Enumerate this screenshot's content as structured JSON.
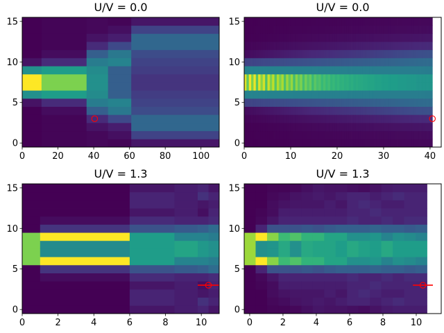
{
  "chart_data": [
    {
      "type": "heatmap",
      "title": "U/V = 0.0",
      "xlim": [
        0,
        110.2
      ],
      "ylim": [
        -0.5,
        15.5
      ],
      "xticks": [
        0,
        20,
        40,
        60,
        80,
        100
      ],
      "yticks": [
        0,
        5,
        10,
        15
      ],
      "rows": 16,
      "columns": [
        {
          "x": [
            0,
            10.8
          ],
          "half_profile": [
            1.0,
            0.5,
            0.05,
            0.0,
            0.0,
            0.0,
            0.0,
            0.0
          ]
        },
        {
          "x": [
            10.8,
            36
          ],
          "half_profile": [
            0.8,
            0.55,
            0.12,
            0.03,
            0.01,
            0.01,
            0.01,
            0.01
          ]
        },
        {
          "x": [
            36,
            48
          ],
          "half_profile": [
            0.5,
            0.48,
            0.42,
            0.3,
            0.12,
            0.05,
            0.02,
            0.02
          ]
        },
        {
          "x": [
            48,
            61
          ],
          "half_profile": [
            0.3,
            0.3,
            0.45,
            0.4,
            0.22,
            0.08,
            0.04,
            0.01
          ]
        },
        {
          "x": [
            61,
            110.2
          ],
          "half_profile": [
            0.15,
            0.18,
            0.2,
            0.23,
            0.33,
            0.33,
            0.2,
            0.06
          ]
        }
      ],
      "marker": {
        "x": 40.5,
        "y": 3,
        "xerr": null
      }
    },
    {
      "type": "heatmap",
      "title": "U/V = 0.0",
      "xlim": [
        0,
        42.4
      ],
      "ylim": [
        -0.5,
        15.5
      ],
      "xticks": [
        0,
        10,
        20,
        30,
        40
      ],
      "yticks": [
        0,
        5,
        10,
        15
      ],
      "rows": 16,
      "column_width": 0.5,
      "center_row": [
        0.95,
        0.75,
        0.98,
        0.8,
        0.97,
        0.74,
        0.95,
        0.82,
        0.93,
        0.72,
        0.92,
        0.8,
        0.9,
        0.73,
        0.88,
        0.79,
        0.87,
        0.72,
        0.85,
        0.76,
        0.84,
        0.7,
        0.82,
        0.74,
        0.8,
        0.7,
        0.78,
        0.72,
        0.76,
        0.68,
        0.74,
        0.7,
        0.72,
        0.67,
        0.7,
        0.67,
        0.69,
        0.65,
        0.67,
        0.64,
        0.66,
        0.63,
        0.64,
        0.62,
        0.63,
        0.61,
        0.62,
        0.6,
        0.61,
        0.6,
        0.6,
        0.59,
        0.59,
        0.58,
        0.58,
        0.58,
        0.57,
        0.57,
        0.57,
        0.56,
        0.56,
        0.56,
        0.55,
        0.55,
        0.55,
        0.55,
        0.54,
        0.54,
        0.54,
        0.54,
        0.53,
        0.53,
        0.53,
        0.53,
        0.52,
        0.52,
        0.52,
        0.52,
        0.52,
        0.52,
        0.52
      ],
      "outer_rows_start": [
        0.45,
        0.2,
        0.03,
        0.01,
        0.0,
        0.0,
        0.0
      ],
      "outer_rows_end": [
        0.42,
        0.35,
        0.25,
        0.12,
        0.06,
        0.03,
        0.02
      ],
      "marker": {
        "x": 40.5,
        "y": 3,
        "xerr": null
      }
    },
    {
      "type": "heatmap",
      "title": "U/V = 1.3",
      "xlim": [
        0,
        11
      ],
      "ylim": [
        -0.5,
        15.5
      ],
      "xticks": [
        0,
        2,
        4,
        6,
        8,
        10
      ],
      "yticks": [
        0,
        5,
        10,
        15
      ],
      "rows": 16,
      "columns": [
        {
          "x": [
            0,
            1
          ],
          "half_profile": [
            0.8,
            0.8,
            0.0,
            0.0,
            0.0,
            0.0,
            0.0,
            0.0
          ]
        },
        {
          "x": [
            1,
            6
          ],
          "half_profile": [
            0.48,
            1.0,
            0.15,
            0.03,
            0.0,
            0.0,
            0.0,
            0.0
          ]
        },
        {
          "x": [
            6,
            8.5
          ],
          "half_profile": [
            0.55,
            0.55,
            0.25,
            0.12,
            0.06,
            0.1,
            0.1,
            0.06
          ]
        },
        {
          "x": [
            8.5,
            9.8
          ],
          "half_profile": [
            0.58,
            0.45,
            0.28,
            0.1,
            0.08,
            0.08,
            0.08,
            0.08
          ]
        },
        {
          "x": [
            9.8,
            10.4
          ],
          "half_profile": [
            0.53,
            0.45,
            0.3,
            0.1,
            0.04,
            0.06,
            0.14,
            0.1
          ]
        },
        {
          "x": [
            10.4,
            11
          ],
          "half_profile": [
            0.5,
            0.42,
            0.35,
            0.12,
            0.1,
            0.08,
            0.1,
            0.06
          ]
        }
      ],
      "marker": {
        "x": 10.4,
        "y": 3,
        "xerr": [
          9.8,
          11.0
        ]
      }
    },
    {
      "type": "heatmap",
      "title": "U/V = 1.3",
      "xlim": [
        -0.33,
        11.5
      ],
      "ylim": [
        -0.5,
        15.5
      ],
      "xticks": [
        0,
        2,
        4,
        6,
        8,
        10
      ],
      "yticks": [
        0,
        5,
        10,
        15
      ],
      "rows": 16,
      "x_start": -0.33,
      "column_width": 0.686,
      "half_profiles": [
        [
          0.85,
          0.85,
          0.0,
          0.0,
          0.0,
          0.0,
          0.0,
          0.0
        ],
        [
          0.5,
          1.0,
          0.1,
          0.02,
          0.01,
          0.0,
          0.0,
          0.0
        ],
        [
          0.52,
          0.82,
          0.25,
          0.06,
          0.03,
          0.03,
          0.02,
          0.01
        ],
        [
          0.6,
          0.68,
          0.25,
          0.1,
          0.08,
          0.05,
          0.03,
          0.01
        ],
        [
          0.5,
          0.72,
          0.25,
          0.1,
          0.08,
          0.06,
          0.05,
          0.02
        ],
        [
          0.6,
          0.65,
          0.27,
          0.1,
          0.08,
          0.06,
          0.06,
          0.04
        ],
        [
          0.58,
          0.65,
          0.25,
          0.1,
          0.08,
          0.06,
          0.07,
          0.06
        ],
        [
          0.58,
          0.58,
          0.28,
          0.1,
          0.08,
          0.08,
          0.06,
          0.05
        ],
        [
          0.55,
          0.58,
          0.3,
          0.1,
          0.08,
          0.06,
          0.08,
          0.05
        ],
        [
          0.6,
          0.5,
          0.3,
          0.12,
          0.1,
          0.1,
          0.1,
          0.04
        ],
        [
          0.57,
          0.5,
          0.3,
          0.1,
          0.1,
          0.12,
          0.1,
          0.03
        ],
        [
          0.55,
          0.52,
          0.32,
          0.1,
          0.12,
          0.1,
          0.08,
          0.05
        ],
        [
          0.6,
          0.45,
          0.3,
          0.12,
          0.1,
          0.08,
          0.1,
          0.07
        ],
        [
          0.55,
          0.5,
          0.3,
          0.1,
          0.1,
          0.08,
          0.12,
          0.08
        ],
        [
          0.55,
          0.48,
          0.28,
          0.12,
          0.1,
          0.1,
          0.1,
          0.08
        ],
        [
          0.55,
          0.45,
          0.3,
          0.12,
          0.1,
          0.1,
          0.1,
          0.08
        ]
      ],
      "marker": {
        "x": 10.4,
        "y": 3,
        "xerr": [
          9.8,
          11.0
        ]
      }
    }
  ],
  "colors": {
    "marker": "#ff0000",
    "frame": "#000000",
    "background": "#ffffff"
  }
}
